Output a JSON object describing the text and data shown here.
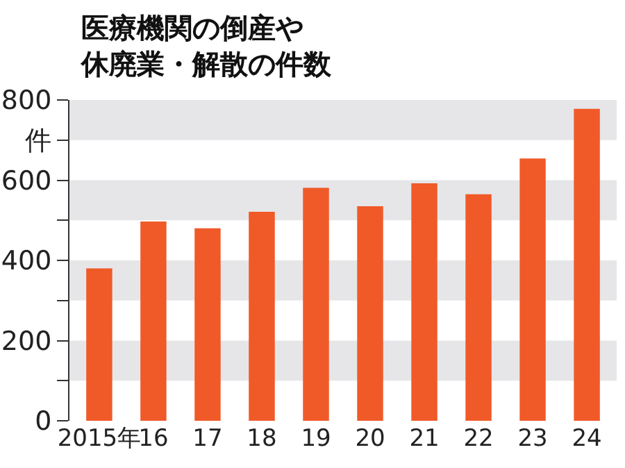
{
  "chart_data": {
    "type": "bar",
    "title": "医療機関の倒産や休廃業・解散の件数",
    "categories": [
      "2015年",
      "16",
      "17",
      "18",
      "19",
      "20",
      "21",
      "22",
      "23",
      "24"
    ],
    "values": [
      380,
      497,
      480,
      521,
      581,
      535,
      592,
      565,
      654,
      778
    ],
    "color": "#f05a28",
    "ylim": [
      0,
      800
    ],
    "yticks": [
      0,
      {
        "value": 100,
        "label": null
      },
      200,
      {
        "value": 300,
        "label": null
      },
      400,
      {
        "value": 500,
        "label": null
      },
      600,
      {
        "value": 700,
        "label": "件"
      },
      800
    ],
    "bands": [
      {
        "axis": "y",
        "from": 100,
        "to": 200,
        "color": "#e6e6e8"
      },
      {
        "axis": "y",
        "from": 300,
        "to": 400,
        "color": "#e6e6e8"
      },
      {
        "axis": "y",
        "from": 500,
        "to": 600,
        "color": "#e6e6e8"
      },
      {
        "axis": "y",
        "from": 700,
        "to": 800,
        "color": "#e6e6e8"
      }
    ],
    "grid": false
  }
}
